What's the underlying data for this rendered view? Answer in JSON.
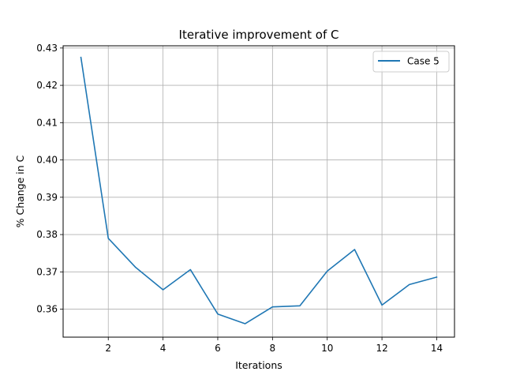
{
  "chart_data": {
    "type": "line",
    "title": "Iterative improvement of C",
    "xlabel": "Iterations",
    "ylabel": "% Change in C",
    "xlim": [
      0.35,
      14.65
    ],
    "ylim": [
      0.3525,
      0.4306
    ],
    "xticks": [
      2,
      4,
      6,
      8,
      10,
      12,
      14
    ],
    "yticks": [
      0.36,
      0.37,
      0.38,
      0.39,
      0.4,
      0.41,
      0.42,
      0.43
    ],
    "ytick_labels": [
      "0.36",
      "0.37",
      "0.38",
      "0.39",
      "0.40",
      "0.41",
      "0.42",
      "0.43"
    ],
    "grid": true,
    "legend_position": "top-right",
    "series": [
      {
        "name": "Case 5",
        "color": "#1f77b4",
        "x": [
          1,
          2,
          3,
          4,
          5,
          6,
          7,
          8,
          9,
          10,
          11,
          12,
          13,
          14
        ],
        "values": [
          0.4275,
          0.379,
          0.3712,
          0.3652,
          0.3706,
          0.3587,
          0.3561,
          0.3606,
          0.3609,
          0.3702,
          0.376,
          0.3611,
          0.3666,
          0.3686
        ]
      }
    ]
  }
}
